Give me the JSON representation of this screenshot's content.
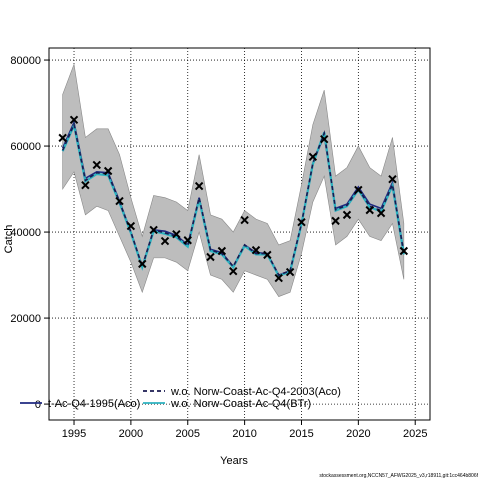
{
  "chart_data": {
    "type": "line",
    "xlabel": "Years",
    "ylabel": "Catch",
    "footer": "stockassessment.org,NCCN57_AFWG2025_v3,r18911,git:1cc464b806f",
    "x": [
      1994,
      1995,
      1996,
      1997,
      1998,
      1999,
      2000,
      2001,
      2002,
      2003,
      2004,
      2005,
      2006,
      2007,
      2008,
      2009,
      2010,
      2011,
      2012,
      2013,
      2014,
      2015,
      2016,
      2017,
      2018,
      2019,
      2020,
      2021,
      2022,
      2023,
      2024
    ],
    "band": {
      "color": "#bdbdbd",
      "upper": [
        72000,
        79000,
        62000,
        64000,
        64000,
        58000,
        48000,
        39000,
        48500,
        48000,
        47000,
        45000,
        58000,
        44000,
        43000,
        40000,
        45000,
        43000,
        42000,
        37000,
        38000,
        51000,
        65000,
        73000,
        53000,
        55000,
        60000,
        55000,
        53000,
        62000,
        42000
      ],
      "lower": [
        50000,
        54000,
        44000,
        46000,
        45000,
        39000,
        33000,
        26000,
        34000,
        34000,
        33000,
        31000,
        40000,
        30000,
        29000,
        26000,
        31000,
        30000,
        29000,
        25000,
        26000,
        35000,
        47000,
        53000,
        37000,
        39000,
        43000,
        39000,
        38000,
        42000,
        29000
      ]
    },
    "series": [
      {
        "name": "t-Ac-Q4-1995(Aco)",
        "color": "#1f2a80",
        "dash": false,
        "values": [
          59500,
          65500,
          52500,
          54000,
          53800,
          47200,
          40000,
          32000,
          40500,
          40200,
          39200,
          37000,
          48000,
          36000,
          35200,
          32000,
          37000,
          35200,
          35000,
          30000,
          31000,
          42000,
          56000,
          62500,
          45500,
          46500,
          50500,
          46500,
          45500,
          51500,
          35200
        ]
      },
      {
        "name": "w.o. Norw-Coast-Ac-Q4-2003(Aco)",
        "color": "#1a1a50",
        "dash": true,
        "values": [
          59000,
          65000,
          52000,
          53800,
          53500,
          47000,
          40000,
          32000,
          40500,
          39800,
          39000,
          36800,
          48000,
          35800,
          35000,
          32000,
          37000,
          35000,
          35000,
          30000,
          31000,
          42000,
          56000,
          63000,
          45200,
          46200,
          50000,
          46000,
          45000,
          51000,
          35000
        ]
      },
      {
        "name": "w.o. Norw-Coast-Ac-Q4(BTr)",
        "color": "#2bb3c0",
        "dash": false,
        "values": [
          58800,
          64800,
          51800,
          53500,
          53200,
          46800,
          39800,
          31800,
          40200,
          39600,
          38800,
          36600,
          47600,
          35600,
          34800,
          31800,
          36800,
          34800,
          34800,
          29800,
          30800,
          41800,
          55800,
          63200,
          45000,
          46000,
          49800,
          45800,
          44800,
          50800,
          34800
        ]
      }
    ],
    "observed": {
      "color": "#000000",
      "values": [
        61900,
        66100,
        50900,
        55600,
        54200,
        47200,
        41400,
        32600,
        40500,
        37900,
        39500,
        38100,
        50700,
        34200,
        35600,
        30900,
        42800,
        35800,
        34700,
        29300,
        30700,
        42300,
        57500,
        61600,
        42600,
        44000,
        49800,
        45100,
        44400,
        52300,
        35600
      ]
    },
    "xlim": [
      1992.8,
      2026.3
    ],
    "ylim": [
      -3700,
      82800
    ],
    "xticks": [
      1995,
      2000,
      2005,
      2010,
      2015,
      2020,
      2025
    ],
    "yticks": [
      0,
      20000,
      40000,
      60000,
      80000
    ],
    "grid": true,
    "legend": "bottom-left"
  }
}
